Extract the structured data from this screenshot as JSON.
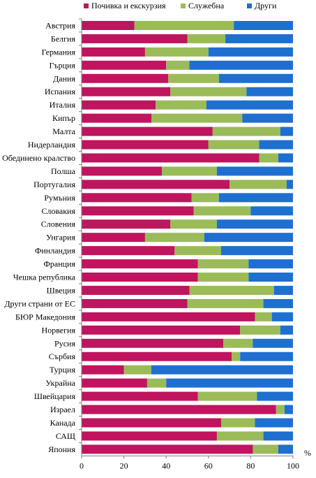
{
  "chart_data": {
    "type": "bar",
    "orientation": "horizontal",
    "stacked": true,
    "unit": "%",
    "xlim": [
      0,
      100
    ],
    "xticks": [
      0,
      20,
      40,
      60,
      80,
      100
    ],
    "grid": false,
    "legend_position": "top",
    "categories": [
      "Австрия",
      "Белгия",
      "Германия",
      "Гърция",
      "Дания",
      "Испания",
      "Италия",
      "Кипър",
      "Малта",
      "Нидерландия",
      "Обединено кралство",
      "Полша",
      "Португалия",
      "Румъния",
      "Словакия",
      "Словения",
      "Унгария",
      "Финландия",
      "Франция",
      "Чешка република",
      "Швеция",
      "Други страни от ЕС",
      "БЮР Македония",
      "Норвегия",
      "Русия",
      "Сърбия",
      "Турция",
      "Украйна",
      "Швейцария",
      "Израел",
      "Канада",
      "САЩ",
      "Япония"
    ],
    "series": [
      {
        "name": "Почивка и екскурзия",
        "color": "#c0145e",
        "values": [
          25,
          50,
          30,
          40,
          41,
          42,
          35,
          33,
          62,
          60,
          84,
          38,
          70,
          52,
          53,
          42,
          30,
          44,
          55,
          55,
          51,
          50,
          82,
          75,
          67,
          71,
          20,
          31,
          55,
          92,
          66,
          64,
          81
        ]
      },
      {
        "name": "Служебна",
        "color": "#9bbb59",
        "values": [
          47,
          18,
          30,
          11,
          24,
          36,
          24,
          43,
          32,
          24,
          9,
          26,
          27,
          13,
          27,
          22,
          28,
          22,
          24,
          24,
          40,
          36,
          8,
          19,
          14,
          4,
          13,
          9,
          28,
          4,
          16,
          22,
          12
        ]
      },
      {
        "name": "Други",
        "color": "#1f6fd0",
        "values": [
          28,
          32,
          40,
          49,
          35,
          22,
          41,
          24,
          6,
          16,
          7,
          36,
          3,
          35,
          20,
          36,
          42,
          34,
          21,
          21,
          9,
          14,
          10,
          6,
          19,
          25,
          67,
          60,
          17,
          4,
          18,
          14,
          7
        ]
      }
    ]
  }
}
